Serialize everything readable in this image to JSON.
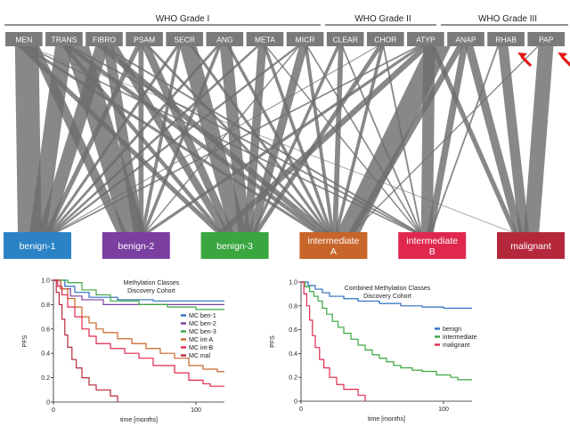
{
  "grades": [
    {
      "label": "WHO Grade I"
    },
    {
      "label": "WHO Grade II"
    },
    {
      "label": "WHO Grade III"
    }
  ],
  "histologies": [
    "MEN",
    "TRANS",
    "FIBRO",
    "PSAM",
    "SECR",
    "ANG",
    "META",
    "MICR",
    "CLEAR",
    "CHOR",
    "ATYP",
    "ANAP",
    "RHAB",
    "PAP"
  ],
  "arrow_markers": [
    "RHAB",
    "PAP"
  ],
  "classes": [
    {
      "label": "benign-1",
      "color": "#2b83c6"
    },
    {
      "label": "benign-2",
      "color": "#7b3fa0"
    },
    {
      "label": "benign-3",
      "color": "#3aa640"
    },
    {
      "label": "intermediate\nA",
      "color": "#c8652a"
    },
    {
      "label": "intermediate\nB",
      "color": "#e0284f"
    },
    {
      "label": "malignant",
      "color": "#b5283c"
    }
  ],
  "flows": [
    [
      0,
      0,
      14
    ],
    [
      0,
      1,
      6
    ],
    [
      0,
      2,
      4
    ],
    [
      0,
      3,
      3
    ],
    [
      0,
      4,
      2
    ],
    [
      0,
      5,
      1
    ],
    [
      1,
      0,
      10
    ],
    [
      1,
      1,
      14
    ],
    [
      1,
      2,
      3
    ],
    [
      1,
      3,
      4
    ],
    [
      1,
      4,
      2
    ],
    [
      2,
      0,
      8
    ],
    [
      2,
      1,
      6
    ],
    [
      2,
      2,
      5
    ],
    [
      2,
      3,
      5
    ],
    [
      2,
      4,
      2
    ],
    [
      3,
      0,
      3
    ],
    [
      3,
      1,
      3
    ],
    [
      3,
      2,
      5
    ],
    [
      3,
      3,
      2
    ],
    [
      4,
      0,
      2
    ],
    [
      4,
      1,
      2
    ],
    [
      4,
      2,
      10
    ],
    [
      4,
      3,
      2
    ],
    [
      5,
      0,
      2
    ],
    [
      5,
      1,
      2
    ],
    [
      5,
      2,
      7
    ],
    [
      5,
      3,
      2
    ],
    [
      6,
      0,
      2
    ],
    [
      6,
      2,
      5
    ],
    [
      6,
      3,
      2
    ],
    [
      6,
      4,
      1
    ],
    [
      7,
      0,
      2
    ],
    [
      7,
      1,
      1
    ],
    [
      7,
      2,
      5
    ],
    [
      7,
      3,
      2
    ],
    [
      7,
      4,
      1
    ],
    [
      8,
      2,
      2
    ],
    [
      8,
      3,
      3
    ],
    [
      8,
      4,
      1
    ],
    [
      9,
      0,
      1
    ],
    [
      9,
      2,
      3
    ],
    [
      9,
      3,
      2
    ],
    [
      9,
      4,
      1
    ],
    [
      10,
      0,
      2
    ],
    [
      10,
      1,
      3
    ],
    [
      10,
      2,
      5
    ],
    [
      10,
      3,
      14
    ],
    [
      10,
      4,
      7
    ],
    [
      10,
      5,
      3
    ],
    [
      11,
      3,
      4
    ],
    [
      11,
      4,
      4
    ],
    [
      11,
      5,
      5
    ],
    [
      12,
      4,
      1
    ],
    [
      12,
      5,
      6
    ],
    [
      13,
      3,
      1
    ],
    [
      13,
      5,
      9
    ]
  ],
  "chart_data": [
    {
      "type": "line",
      "title": "Methylation Classes\nDiscovery Cohort",
      "xlabel": "time [months]",
      "ylabel": "PFS",
      "xlim": [
        0,
        120
      ],
      "ylim": [
        0,
        1
      ],
      "xticks": [
        0,
        100
      ],
      "yticks": [
        0,
        0.2,
        0.4,
        0.6,
        0.8,
        1.0
      ],
      "series": [
        {
          "name": "MC ben-1",
          "color": "#2b6fc0",
          "steps": [
            [
              0,
              1.0
            ],
            [
              8,
              0.95
            ],
            [
              15,
              0.9
            ],
            [
              25,
              0.86
            ],
            [
              45,
              0.84
            ],
            [
              70,
              0.83
            ],
            [
              120,
              0.83
            ]
          ]
        },
        {
          "name": "MC ben-2",
          "color": "#7b3fa0",
          "steps": [
            [
              0,
              1.0
            ],
            [
              5,
              0.93
            ],
            [
              12,
              0.87
            ],
            [
              20,
              0.84
            ],
            [
              35,
              0.8
            ],
            [
              60,
              0.8
            ],
            [
              120,
              0.8
            ]
          ]
        },
        {
          "name": "MC ben-3",
          "color": "#3aa640",
          "steps": [
            [
              0,
              1.0
            ],
            [
              10,
              0.98
            ],
            [
              20,
              0.92
            ],
            [
              30,
              0.88
            ],
            [
              40,
              0.83
            ],
            [
              60,
              0.8
            ],
            [
              80,
              0.78
            ],
            [
              100,
              0.76
            ],
            [
              120,
              0.76
            ]
          ]
        },
        {
          "name": "MC int-A",
          "color": "#c8652a",
          "steps": [
            [
              0,
              1.0
            ],
            [
              5,
              0.93
            ],
            [
              10,
              0.85
            ],
            [
              15,
              0.78
            ],
            [
              20,
              0.7
            ],
            [
              25,
              0.65
            ],
            [
              30,
              0.6
            ],
            [
              35,
              0.57
            ],
            [
              45,
              0.52
            ],
            [
              55,
              0.48
            ],
            [
              65,
              0.44
            ],
            [
              75,
              0.4
            ],
            [
              85,
              0.36
            ],
            [
              95,
              0.3
            ],
            [
              105,
              0.27
            ],
            [
              115,
              0.25
            ],
            [
              120,
              0.25
            ]
          ]
        },
        {
          "name": "MC int-B",
          "color": "#e0284f",
          "steps": [
            [
              0,
              1.0
            ],
            [
              3,
              0.95
            ],
            [
              6,
              0.88
            ],
            [
              10,
              0.78
            ],
            [
              15,
              0.7
            ],
            [
              20,
              0.6
            ],
            [
              25,
              0.54
            ],
            [
              30,
              0.48
            ],
            [
              40,
              0.44
            ],
            [
              50,
              0.4
            ],
            [
              60,
              0.36
            ],
            [
              70,
              0.3
            ],
            [
              85,
              0.24
            ],
            [
              95,
              0.18
            ],
            [
              105,
              0.15
            ],
            [
              110,
              0.13
            ],
            [
              120,
              0.13
            ]
          ]
        },
        {
          "name": "MC mal",
          "color": "#b5283c",
          "steps": [
            [
              0,
              1.0
            ],
            [
              2,
              0.9
            ],
            [
              4,
              0.8
            ],
            [
              6,
              0.68
            ],
            [
              8,
              0.55
            ],
            [
              10,
              0.45
            ],
            [
              13,
              0.35
            ],
            [
              16,
              0.28
            ],
            [
              20,
              0.2
            ],
            [
              25,
              0.14
            ],
            [
              30,
              0.1
            ],
            [
              40,
              0.05
            ],
            [
              45,
              0.0
            ]
          ]
        }
      ]
    },
    {
      "type": "line",
      "title": "Combined Methylation Classes\nDiscovery Cohort",
      "xlabel": "time [months]",
      "ylabel": "PFS",
      "xlim": [
        0,
        120
      ],
      "ylim": [
        0,
        1
      ],
      "xticks": [
        0,
        100
      ],
      "yticks": [
        0,
        0.2,
        0.4,
        0.6,
        0.8,
        1.0
      ],
      "series": [
        {
          "name": "benign",
          "color": "#2b6fc0",
          "steps": [
            [
              0,
              1.0
            ],
            [
              5,
              0.97
            ],
            [
              10,
              0.94
            ],
            [
              15,
              0.91
            ],
            [
              20,
              0.88
            ],
            [
              30,
              0.86
            ],
            [
              40,
              0.84
            ],
            [
              55,
              0.82
            ],
            [
              70,
              0.8
            ],
            [
              85,
              0.79
            ],
            [
              100,
              0.78
            ],
            [
              120,
              0.78
            ]
          ]
        },
        {
          "name": "intermediate",
          "color": "#3aa640",
          "steps": [
            [
              0,
              1.0
            ],
            [
              3,
              0.96
            ],
            [
              6,
              0.92
            ],
            [
              9,
              0.88
            ],
            [
              12,
              0.84
            ],
            [
              15,
              0.78
            ],
            [
              18,
              0.73
            ],
            [
              22,
              0.67
            ],
            [
              26,
              0.62
            ],
            [
              30,
              0.57
            ],
            [
              35,
              0.52
            ],
            [
              40,
              0.47
            ],
            [
              45,
              0.43
            ],
            [
              50,
              0.39
            ],
            [
              55,
              0.36
            ],
            [
              60,
              0.33
            ],
            [
              65,
              0.3
            ],
            [
              70,
              0.28
            ],
            [
              78,
              0.26
            ],
            [
              85,
              0.25
            ],
            [
              95,
              0.22
            ],
            [
              105,
              0.2
            ],
            [
              110,
              0.18
            ],
            [
              120,
              0.18
            ]
          ]
        },
        {
          "name": "malignant",
          "color": "#e0284f",
          "steps": [
            [
              0,
              1.0
            ],
            [
              2,
              0.9
            ],
            [
              4,
              0.8
            ],
            [
              6,
              0.68
            ],
            [
              8,
              0.55
            ],
            [
              10,
              0.45
            ],
            [
              13,
              0.35
            ],
            [
              16,
              0.28
            ],
            [
              20,
              0.2
            ],
            [
              25,
              0.14
            ],
            [
              30,
              0.1
            ],
            [
              40,
              0.05
            ],
            [
              45,
              0.0
            ]
          ]
        }
      ]
    }
  ]
}
